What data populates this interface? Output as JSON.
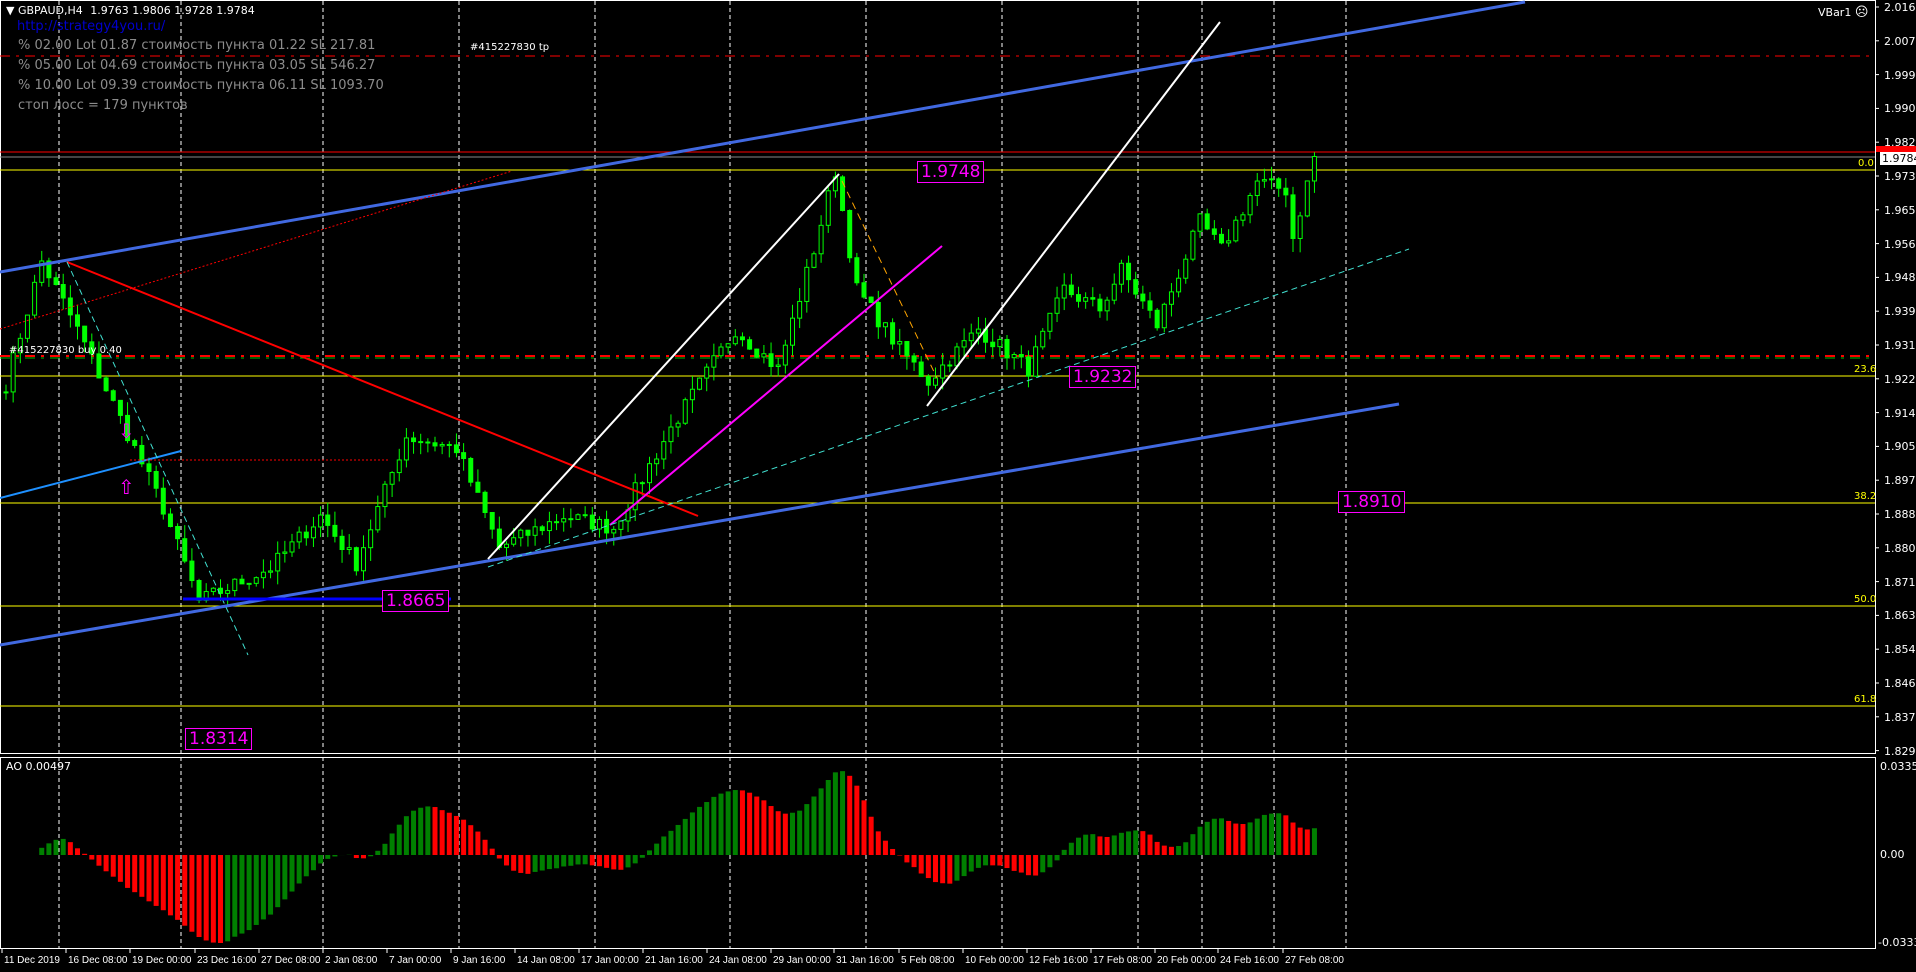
{
  "header": {
    "symbol": "GBPAUD,H4",
    "ohlc": "1.9763 1.9806 1.9728 1.9784",
    "link": "http://strategy4you.ru/",
    "risk_lines": [
      "% 02.00  Lot 01.87  стоимость пункта 01.22  SL 217.81",
      "% 05.00  Lot 04.69  стоимость пункта 03.05  SL 546.27",
      "% 10.00  Lot 09.39  стоимость пункта 06.11  SL 1093.70"
    ],
    "stop_loss": "стоп лосс = 179 пунктов",
    "order_tp": "#415227830 tp",
    "order_buy": "#415227830 buy 0.40",
    "vbar": "VBar1",
    "vbar_icon": "sad-face-icon"
  },
  "price_axis": {
    "ticks": [
      "2.0160",
      "2.0075",
      "1.9990",
      "1.9905",
      "1.9820",
      "1.9735",
      "1.9650",
      "1.9565",
      "1.9480",
      "1.9395",
      "1.9310",
      "1.9225",
      "1.9140",
      "1.9055",
      "1.8970",
      "1.8885",
      "1.8800",
      "1.8715",
      "1.8630",
      "1.8545",
      "1.8460",
      "1.8375",
      "1.8290"
    ],
    "current_price": "1.9784",
    "high_price": "1.9806"
  },
  "fib_levels": [
    "0.0",
    "23.6",
    "38.2",
    "50.0",
    "61.8"
  ],
  "price_labels": [
    "1.9748",
    "1.9232",
    "1.8910",
    "1.8665",
    "1.8314"
  ],
  "indicator": {
    "label": "AO 0.00497",
    "ticks": [
      "0.03358",
      "0.00",
      "-0.03334"
    ]
  },
  "time_axis": [
    "11 Dec 2019",
    "16 Dec 08:00",
    "19 Dec 00:00",
    "23 Dec 16:00",
    "27 Dec 08:00",
    "2 Jan 08:00",
    "7 Jan 00:00",
    "9 Jan 16:00",
    "14 Jan 08:00",
    "17 Jan 00:00",
    "21 Jan 16:00",
    "24 Jan 08:00",
    "29 Jan 00:00",
    "31 Jan 16:00",
    "5 Feb 08:00",
    "10 Feb 00:00",
    "12 Feb 16:00",
    "17 Feb 08:00",
    "20 Feb 00:00",
    "24 Feb 16:00",
    "27 Feb 08:00"
  ],
  "price_waypoints": [
    [
      0,
      1.9212
    ],
    [
      5,
      1.952
    ],
    [
      10,
      1.935
    ],
    [
      22,
      1.89
    ],
    [
      27,
      1.8665
    ],
    [
      37,
      1.875
    ],
    [
      44,
      1.888
    ],
    [
      49,
      1.876
    ],
    [
      56,
      1.908
    ],
    [
      63,
      1.905
    ],
    [
      69,
      1.88
    ],
    [
      78,
      1.888
    ],
    [
      85,
      1.885
    ],
    [
      93,
      1.91
    ],
    [
      102,
      1.935
    ],
    [
      108,
      1.925
    ],
    [
      113,
      1.955
    ],
    [
      116,
      1.9748
    ],
    [
      119,
      1.945
    ],
    [
      125,
      1.93
    ],
    [
      129,
      1.922
    ],
    [
      136,
      1.935
    ],
    [
      143,
      1.925
    ],
    [
      148,
      1.945
    ],
    [
      153,
      1.94
    ],
    [
      156,
      1.95
    ],
    [
      161,
      1.936
    ],
    [
      167,
      1.962
    ],
    [
      170,
      1.955
    ],
    [
      175,
      1.972
    ],
    [
      179,
      1.97
    ],
    [
      180,
      1.958
    ],
    [
      183,
      1.9784
    ]
  ],
  "colors": {
    "bull": "#00ff00",
    "ao_up": "#008000",
    "ao_down": "#ff0000",
    "channel": "#4169e1",
    "fib": "#ffff00",
    "label": "#ff00ff"
  }
}
